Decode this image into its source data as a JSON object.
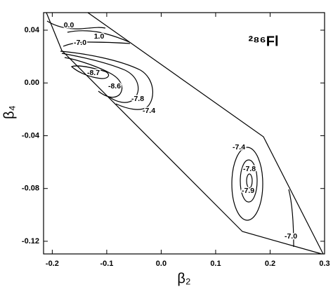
{
  "chart_data": {
    "type": "contour",
    "title": "²⁸⁶Fl",
    "x_label": "β₂",
    "y_label": "β₄",
    "xlim": [
      -0.216,
      0.3
    ],
    "ylim": [
      -0.1296,
      0.0533
    ],
    "xticks": [
      -0.2,
      -0.1,
      {
        "value": 0,
        "label": "0.0"
      },
      0.1,
      0.2,
      0.3
    ],
    "yticks": [
      0.04,
      {
        "value": 0,
        "label": "0.00"
      },
      -0.04,
      -0.08,
      -0.12
    ],
    "levels": [
      {
        "value": 0,
        "label": "0.0"
      },
      {
        "value": 1,
        "label": "1.0"
      },
      {
        "value": -7,
        "label": "-7.0"
      },
      -8.7,
      -8.6,
      -7.8,
      -7.4,
      -7.4,
      -7.8,
      -7.9,
      {
        "value": -7,
        "label": "-7.0"
      }
    ]
  }
}
